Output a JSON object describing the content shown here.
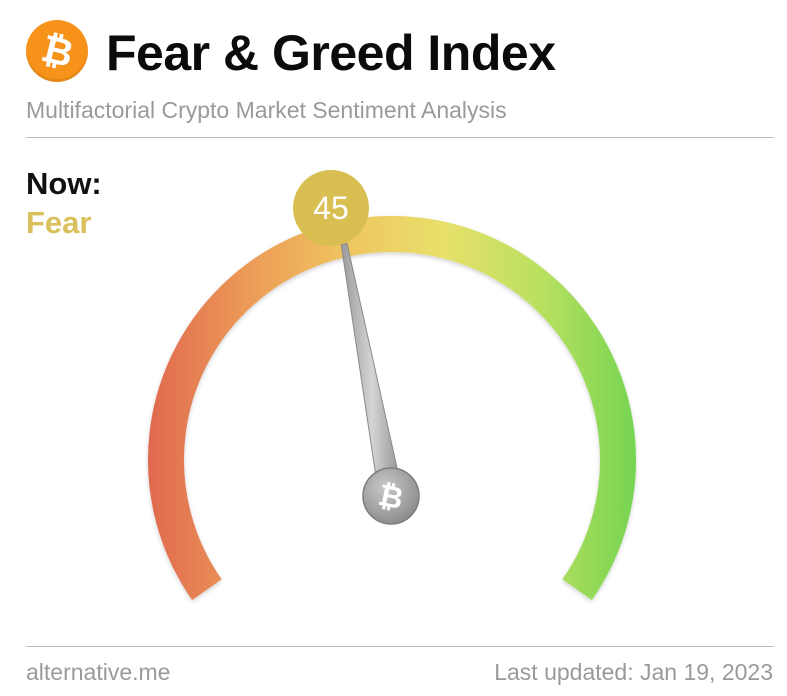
{
  "header": {
    "logo_icon": "bitcoin-icon",
    "logo_glyph": "₿",
    "logo_color": "#f7931a",
    "title": "Fear & Greed Index",
    "subtitle": "Multifactorial Crypto Market Sentiment Analysis"
  },
  "current": {
    "now_label": "Now:",
    "classification": "Fear",
    "value": "45",
    "value_number": 45,
    "scale_min": 0,
    "scale_max": 100,
    "classification_color": "#d9c05a",
    "badge_color": "#d9bf52"
  },
  "gauge": {
    "color_stops": [
      "#e06a4f",
      "#ec9a57",
      "#efc55f",
      "#e8e06a",
      "#b8e060",
      "#72d450"
    ],
    "needle_icon": "bitcoin-icon",
    "needle_glyph": "₿"
  },
  "footer": {
    "source": "alternative.me",
    "last_updated": "Last updated: Jan 19, 2023"
  }
}
